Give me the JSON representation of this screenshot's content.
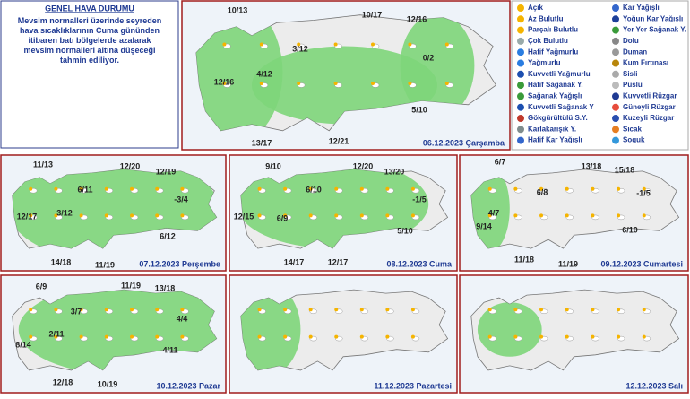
{
  "header": {
    "title": "GENEL HAVA DURUMU",
    "text": "Mevsim normalleri üzerinde seyreden hava sıcaklıklarının Cuma gününden itibaren batı bölgelerde azalarak mevsim normalleri altına düşeceği tahmin ediliyor."
  },
  "main_map": {
    "date": "06.12.2023 Çarşamba",
    "temps": [
      "10/13",
      "10/17",
      "12/16",
      "3/12",
      "0/2",
      "4/12",
      "12/16",
      "5/10",
      "13/17",
      "12/21"
    ]
  },
  "legend": {
    "column1": [
      "Açık",
      "Az Bulutlu",
      "Parçalı Bulutlu",
      "Çok Bulutlu",
      "Hafif Yağmurlu",
      "Yağmurlu",
      "Kuvvetli Yağmurlu",
      "Hafif Sağanak Y.",
      "Sağanak Yağışlı",
      "Kuvvetli Sağanak Y",
      "Gökgürültülü S.Y.",
      "Karlakarışık Y.",
      "Hafif Kar Yağışlı"
    ],
    "column2": [
      "Kar Yağışlı",
      "Yoğun Kar Yağışlı",
      "Yer Yer Sağanak Y.",
      "Dolu",
      "Duman",
      "Kum Fırtınası",
      "Sisli",
      "Puslu",
      "Kuvvetli Rüzgar",
      "Güneyli Rüzgar",
      "Kuzeyli Rüzgar",
      "Sıcak",
      "Soguk"
    ]
  },
  "panels": [
    {
      "date": "07.12.2023 Perşembe",
      "temps": [
        "11/13",
        "12/20",
        "12/19",
        "6/11",
        "-3/4",
        "12/17",
        "3/12",
        "6/12",
        "14/18",
        "11/19"
      ]
    },
    {
      "date": "08.12.2023 Cuma",
      "temps": [
        "9/10",
        "12/20",
        "13/20",
        "6/10",
        "-1/5",
        "12/15",
        "6/9",
        "5/10",
        "14/17",
        "12/17"
      ]
    },
    {
      "date": "09.12.2023 Cumartesi",
      "temps": [
        "6/7",
        "13/18",
        "15/18",
        "6/8",
        "-1/5",
        "4/7",
        "9/14",
        "6/10",
        "11/18",
        "11/19"
      ]
    },
    {
      "date": "10.12.2023 Pazar",
      "temps": [
        "6/9",
        "11/19",
        "13/18",
        "3/7",
        "4/4",
        "2/11",
        "8/14",
        "4/11",
        "12/18",
        "10/19"
      ]
    },
    {
      "date": "11.12.2023 Pazartesi",
      "temps": []
    },
    {
      "date": "12.12.2023 Salı",
      "temps": []
    }
  ]
}
